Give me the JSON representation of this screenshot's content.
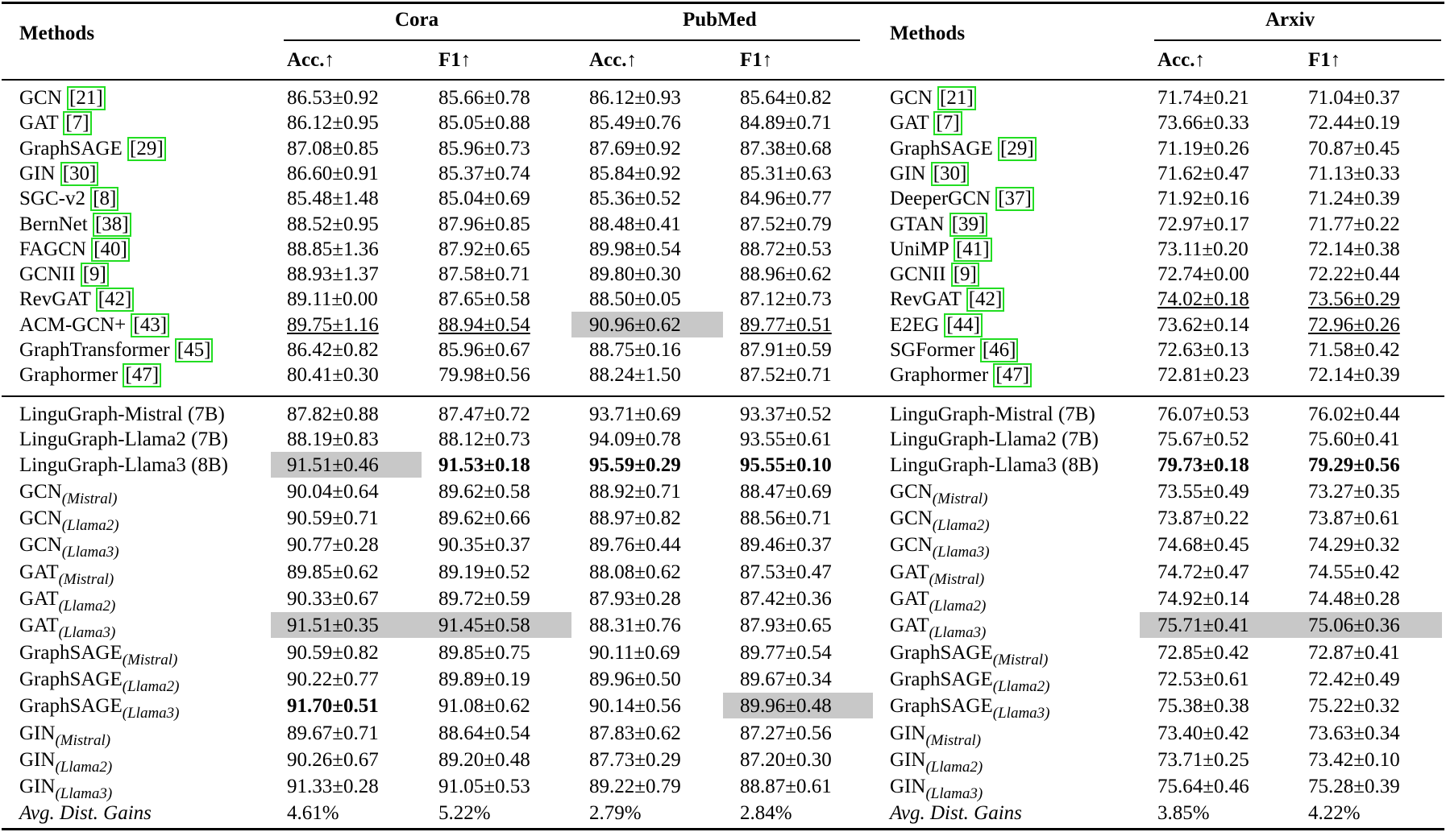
{
  "header": {
    "methods_label": "Methods",
    "datasets": [
      "Cora",
      "PubMed",
      "Arxiv"
    ],
    "metrics": [
      "Acc.↑",
      "F1↑",
      "Acc.↑",
      "F1↑",
      "Acc.↑",
      "F1↑"
    ]
  },
  "baseline_rows": [
    {
      "left_name": "GCN ",
      "left_ref": "21",
      "cells": [
        "86.53±0.92",
        "85.66±0.78",
        "86.12±0.93",
        "85.64±0.82"
      ],
      "right_name": "GCN ",
      "right_ref": "21",
      "arxiv": [
        "71.74±0.21",
        "71.04±0.37"
      ]
    },
    {
      "left_name": "GAT ",
      "left_ref": "7",
      "cells": [
        "86.12±0.95",
        "85.05±0.88",
        "85.49±0.76",
        "84.89±0.71"
      ],
      "right_name": "GAT ",
      "right_ref": "7",
      "arxiv": [
        "73.66±0.33",
        "72.44±0.19"
      ]
    },
    {
      "left_name": "GraphSAGE ",
      "left_ref": "29",
      "cells": [
        "87.08±0.85",
        "85.96±0.73",
        "87.69±0.92",
        "87.38±0.68"
      ],
      "right_name": "GraphSAGE ",
      "right_ref": "29",
      "arxiv": [
        "71.19±0.26",
        "70.87±0.45"
      ]
    },
    {
      "left_name": "GIN ",
      "left_ref": "30",
      "cells": [
        "86.60±0.91",
        "85.37±0.74",
        "85.84±0.92",
        "85.31±0.63"
      ],
      "right_name": "GIN ",
      "right_ref": "30",
      "arxiv": [
        "71.62±0.47",
        "71.13±0.33"
      ]
    },
    {
      "left_name": "SGC-v2 ",
      "left_ref": "8",
      "cells": [
        "85.48±1.48",
        "85.04±0.69",
        "85.36±0.52",
        "84.96±0.77"
      ],
      "right_name": "DeeperGCN ",
      "right_ref": "37",
      "arxiv": [
        "71.92±0.16",
        "71.24±0.39"
      ]
    },
    {
      "left_name": "BernNet ",
      "left_ref": "38",
      "cells": [
        "88.52±0.95",
        "87.96±0.85",
        "88.48±0.41",
        "87.52±0.79"
      ],
      "right_name": "GTAN ",
      "right_ref": "39",
      "arxiv": [
        "72.97±0.17",
        "71.77±0.22"
      ]
    },
    {
      "left_name": "FAGCN ",
      "left_ref": "40",
      "cells": [
        "88.85±1.36",
        "87.92±0.65",
        "89.98±0.54",
        "88.72±0.53"
      ],
      "right_name": "UniMP ",
      "right_ref": "41",
      "arxiv": [
        "73.11±0.20",
        "72.14±0.38"
      ]
    },
    {
      "left_name": "GCNII ",
      "left_ref": "9",
      "cells": [
        "88.93±1.37",
        "87.58±0.71",
        "89.80±0.30",
        "88.96±0.62"
      ],
      "right_name": "GCNII ",
      "right_ref": "9",
      "arxiv": [
        "72.74±0.00",
        "72.22±0.44"
      ]
    },
    {
      "left_name": "RevGAT ",
      "left_ref": "42",
      "cells": [
        "89.11±0.00",
        "87.65±0.58",
        "88.50±0.05",
        "87.12±0.73"
      ],
      "right_name": "RevGAT ",
      "right_ref": "42",
      "arxiv": [
        "74.02±0.18",
        "73.56±0.29"
      ]
    },
    {
      "left_name": "ACM-GCN+ ",
      "left_ref": "43",
      "cells": [
        "89.75±1.16",
        "88.94±0.54",
        "90.96±0.62",
        "89.77±0.51"
      ],
      "right_name": "E2EG ",
      "right_ref": "44",
      "arxiv": [
        "73.62±0.14",
        "72.96±0.26"
      ]
    },
    {
      "left_name": "GraphTransformer ",
      "left_ref": "45",
      "cells": [
        "86.42±0.82",
        "85.96±0.67",
        "88.75±0.16",
        "87.91±0.59"
      ],
      "right_name": "SGFormer ",
      "right_ref": "46",
      "arxiv": [
        "72.63±0.13",
        "71.58±0.42"
      ]
    },
    {
      "left_name": "Graphormer ",
      "left_ref": "47",
      "cells": [
        "80.41±0.30",
        "79.98±0.56",
        "88.24±1.50",
        "87.52±0.71"
      ],
      "right_name": "Graphormer ",
      "right_ref": "47",
      "arxiv": [
        "72.81±0.23",
        "72.14±0.39"
      ]
    }
  ],
  "llm_rows": [
    {
      "base": "LinguGraph-Mistral (7B)",
      "sub": "",
      "cells": [
        "87.82±0.88",
        "87.47±0.72",
        "93.71±0.69",
        "93.37±0.52",
        "76.07±0.53",
        "76.02±0.44"
      ]
    },
    {
      "base": "LinguGraph-Llama2 (7B)",
      "sub": "",
      "cells": [
        "88.19±0.83",
        "88.12±0.73",
        "94.09±0.78",
        "93.55±0.61",
        "75.67±0.52",
        "75.60±0.41"
      ]
    },
    {
      "base": "LinguGraph-Llama3 (8B)",
      "sub": "",
      "cells": [
        "91.51±0.46",
        "91.53±0.18",
        "95.59±0.29",
        "95.55±0.10",
        "79.73±0.18",
        "79.29±0.56"
      ]
    },
    {
      "base": "GCN",
      "sub": "(Mistral)",
      "cells": [
        "90.04±0.64",
        "89.62±0.58",
        "88.92±0.71",
        "88.47±0.69",
        "73.55±0.49",
        "73.27±0.35"
      ]
    },
    {
      "base": "GCN",
      "sub": "(Llama2)",
      "cells": [
        "90.59±0.71",
        "89.62±0.66",
        "88.97±0.82",
        "88.56±0.71",
        "73.87±0.22",
        "73.87±0.61"
      ]
    },
    {
      "base": "GCN",
      "sub": "(Llama3)",
      "cells": [
        "90.77±0.28",
        "90.35±0.37",
        "89.76±0.44",
        "89.46±0.37",
        "74.68±0.45",
        "74.29±0.32"
      ]
    },
    {
      "base": "GAT",
      "sub": "(Mistral)",
      "cells": [
        "89.85±0.62",
        "89.19±0.52",
        "88.08±0.62",
        "87.53±0.47",
        "74.72±0.47",
        "74.55±0.42"
      ]
    },
    {
      "base": "GAT",
      "sub": "(Llama2)",
      "cells": [
        "90.33±0.67",
        "89.72±0.59",
        "87.93±0.28",
        "87.42±0.36",
        "74.92±0.14",
        "74.48±0.28"
      ]
    },
    {
      "base": "GAT",
      "sub": "(Llama3)",
      "cells": [
        "91.51±0.35",
        "91.45±0.58",
        "88.31±0.76",
        "87.93±0.65",
        "75.71±0.41",
        "75.06±0.36"
      ]
    },
    {
      "base": "GraphSAGE",
      "sub": "(Mistral)",
      "cells": [
        "90.59±0.82",
        "89.85±0.75",
        "90.11±0.69",
        "89.77±0.54",
        "72.85±0.42",
        "72.87±0.41"
      ]
    },
    {
      "base": "GraphSAGE",
      "sub": "(Llama2)",
      "cells": [
        "90.22±0.77",
        "89.89±0.19",
        "89.96±0.50",
        "89.67±0.34",
        "72.53±0.61",
        "72.42±0.49"
      ]
    },
    {
      "base": "GraphSAGE",
      "sub": "(Llama3)",
      "cells": [
        "91.70±0.51",
        "91.08±0.62",
        "90.14±0.56",
        "89.96±0.48",
        "75.38±0.38",
        "75.22±0.32"
      ]
    },
    {
      "base": "GIN",
      "sub": "(Mistral)",
      "cells": [
        "89.67±0.71",
        "88.64±0.54",
        "87.83±0.62",
        "87.27±0.56",
        "73.40±0.42",
        "73.63±0.34"
      ]
    },
    {
      "base": "GIN",
      "sub": "(Llama2)",
      "cells": [
        "90.26±0.67",
        "89.20±0.48",
        "87.73±0.29",
        "87.20±0.30",
        "73.71±0.25",
        "73.42±0.10"
      ]
    },
    {
      "base": "GIN",
      "sub": "(Llama3)",
      "cells": [
        "91.33±0.28",
        "91.05±0.53",
        "89.22±0.79",
        "88.87±0.61",
        "75.64±0.46",
        "75.28±0.39"
      ]
    }
  ],
  "gains_row": {
    "label": "Avg. Dist. Gains",
    "cells": [
      "4.61%",
      "5.22%",
      "2.79%",
      "2.84%",
      "3.85%",
      "4.22%"
    ]
  },
  "emphasis": {
    "bold": [
      [
        "llm",
        2,
        1
      ],
      [
        "llm",
        2,
        2
      ],
      [
        "llm",
        2,
        3
      ],
      [
        "llm",
        2,
        4
      ],
      [
        "llm",
        2,
        5
      ],
      [
        "llm",
        11,
        0
      ]
    ],
    "shaded": [
      [
        "base",
        9,
        2
      ],
      [
        "llm",
        2,
        0
      ],
      [
        "llm",
        8,
        0
      ],
      [
        "llm",
        8,
        1
      ],
      [
        "llm",
        8,
        4
      ],
      [
        "llm",
        8,
        5
      ],
      [
        "llm",
        11,
        3
      ]
    ],
    "underlined": [
      [
        "base",
        8,
        4
      ],
      [
        "base",
        8,
        5
      ],
      [
        "base",
        9,
        0
      ],
      [
        "base",
        9,
        1
      ],
      [
        "base",
        9,
        3
      ],
      [
        "base",
        9,
        5
      ]
    ],
    "shade_color": "#c8c8c8",
    "cite_box_color": "#22dd22"
  }
}
